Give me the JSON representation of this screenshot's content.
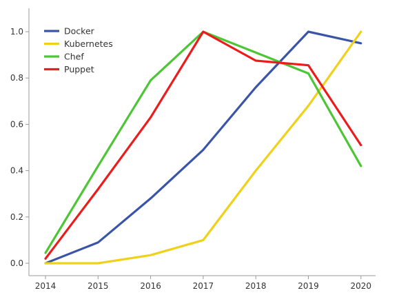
{
  "chart_data": {
    "type": "line",
    "title": "",
    "xlabel": "",
    "ylabel": "",
    "categories": [
      "2014",
      "2015",
      "2016",
      "2017",
      "2018",
      "2019",
      "2020"
    ],
    "ylim": [
      0,
      1.0
    ],
    "yticks": [
      "0.0",
      "0.2",
      "0.4",
      "0.6",
      "0.8",
      "1.0"
    ],
    "grid": false,
    "legend_position": "top-left",
    "series": [
      {
        "name": "Docker",
        "color": "#3a55a8",
        "values": [
          0.0,
          0.09,
          0.28,
          0.49,
          0.76,
          1.0,
          0.95
        ]
      },
      {
        "name": "Kubernetes",
        "color": "#f0d11a",
        "values": [
          0.0,
          0.0,
          0.035,
          0.1,
          0.4,
          0.68,
          1.0
        ]
      },
      {
        "name": "Chef",
        "color": "#4cc634",
        "values": [
          0.045,
          0.42,
          0.79,
          1.0,
          0.91,
          0.82,
          0.42
        ]
      },
      {
        "name": "Puppet",
        "color": "#ec1c1c",
        "values": [
          0.02,
          0.32,
          0.63,
          1.0,
          0.875,
          0.855,
          0.51
        ]
      }
    ]
  }
}
